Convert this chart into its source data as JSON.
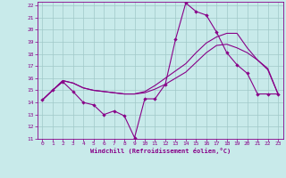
{
  "xlabel": "Windchill (Refroidissement éolien,°C)",
  "bg_color": "#c8eaea",
  "grid_color": "#a0c8c8",
  "line_color": "#880088",
  "xlim": [
    -0.5,
    23.5
  ],
  "ylim": [
    11,
    22.3
  ],
  "xticks": [
    0,
    1,
    2,
    3,
    4,
    5,
    6,
    7,
    8,
    9,
    10,
    11,
    12,
    13,
    14,
    15,
    16,
    17,
    18,
    19,
    20,
    21,
    22,
    23
  ],
  "yticks": [
    11,
    12,
    13,
    14,
    15,
    16,
    17,
    18,
    19,
    20,
    21,
    22
  ],
  "line1_x": [
    0,
    1,
    2,
    3,
    4,
    5,
    6,
    7,
    8,
    9,
    10,
    11,
    12,
    13,
    14,
    15,
    16,
    17,
    18,
    19,
    20,
    21,
    22,
    23
  ],
  "line1_y": [
    14.2,
    15.0,
    15.7,
    14.9,
    14.0,
    13.8,
    13.0,
    13.3,
    12.9,
    11.1,
    14.3,
    14.3,
    15.5,
    19.2,
    22.2,
    21.5,
    21.2,
    19.8,
    18.1,
    17.1,
    16.4,
    14.7,
    14.7,
    14.7
  ],
  "line2_x": [
    0,
    1,
    2,
    3,
    4,
    5,
    6,
    7,
    8,
    9,
    10,
    11,
    12,
    13,
    14,
    15,
    16,
    17,
    18,
    19,
    20,
    21,
    22,
    23
  ],
  "line2_y": [
    14.2,
    15.0,
    15.8,
    15.6,
    15.2,
    15.0,
    14.9,
    14.8,
    14.7,
    14.7,
    14.8,
    15.1,
    15.5,
    16.0,
    16.5,
    17.3,
    18.1,
    18.7,
    18.8,
    18.5,
    18.1,
    17.5,
    16.8,
    14.7
  ],
  "line3_x": [
    0,
    1,
    2,
    3,
    4,
    5,
    6,
    7,
    8,
    9,
    10,
    11,
    12,
    13,
    14,
    15,
    16,
    17,
    18,
    19,
    20,
    21,
    22,
    23
  ],
  "line3_y": [
    14.2,
    15.0,
    15.8,
    15.6,
    15.2,
    15.0,
    14.9,
    14.8,
    14.7,
    14.7,
    14.9,
    15.4,
    16.0,
    16.6,
    17.2,
    18.1,
    18.9,
    19.4,
    19.7,
    19.7,
    18.5,
    17.5,
    16.7,
    14.7
  ]
}
